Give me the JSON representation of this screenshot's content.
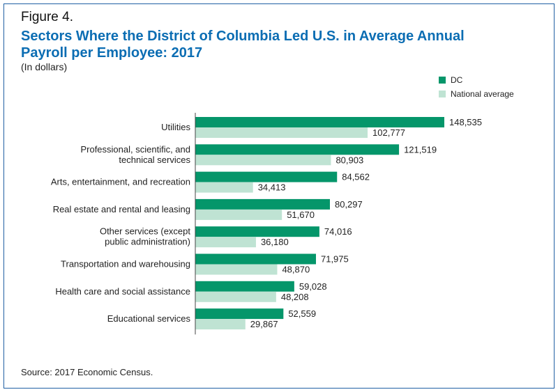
{
  "figure_label": "Figure 4.",
  "source": "Source: 2017 Economic Census.",
  "colors": {
    "dc": "#05966a",
    "national": "#bfe3d3",
    "title": "#0b6db3",
    "border": "#1f5fa3"
  },
  "chart_data": {
    "type": "bar",
    "orientation": "horizontal",
    "title": "Sectors Where the District of Columbia Led U.S. in Average Annual Payroll per Employee: 2017",
    "subtitle": "(In dollars)",
    "legend_position": "top-right",
    "grid": false,
    "xlim": [
      0,
      150000
    ],
    "categories": [
      [
        "Utilities"
      ],
      [
        "Professional, scientific, and",
        "technical services"
      ],
      [
        "Arts, entertainment, and recreation"
      ],
      [
        "Real estate and rental and leasing"
      ],
      [
        "Other services (except",
        "public administration)"
      ],
      [
        "Transportation and warehousing"
      ],
      [
        "Health care and social assistance"
      ],
      [
        "Educational services"
      ]
    ],
    "series": [
      {
        "name": "DC",
        "values": [
          148535,
          121519,
          84562,
          80297,
          74016,
          71975,
          59028,
          52559
        ]
      },
      {
        "name": "National average",
        "values": [
          102777,
          80903,
          34413,
          51670,
          36180,
          48870,
          48208,
          29867
        ]
      }
    ]
  }
}
